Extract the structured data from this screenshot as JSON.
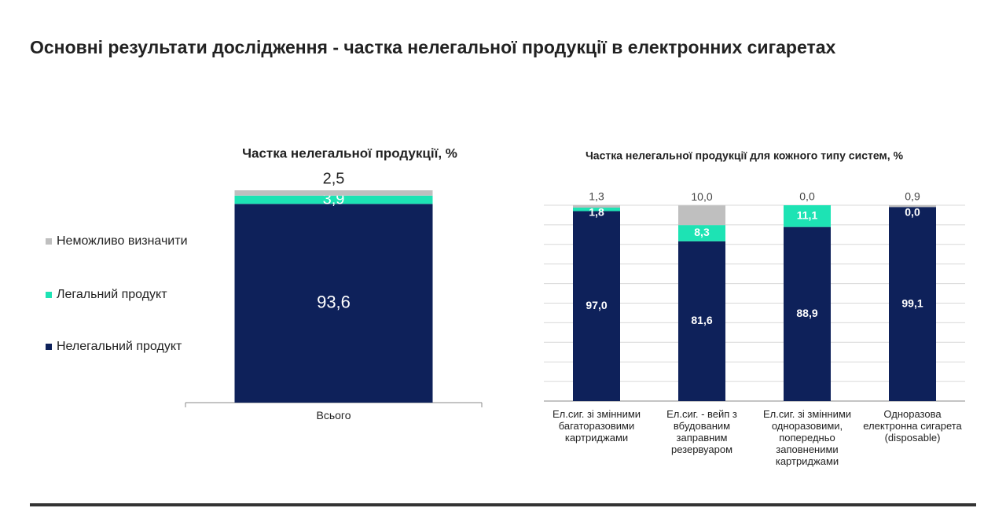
{
  "page_title": "Основні результати дослідження - частка нелегальної продукції в електронних сигаретах",
  "chart_data": [
    {
      "type": "bar",
      "stacked": true,
      "title": "Частка нелегальної продукції, %",
      "categories": [
        "Всього"
      ],
      "series": [
        {
          "name": "Нелегальний продукт",
          "color": "#0e215a",
          "values": [
            93.6
          ],
          "value_labels": [
            "93,6"
          ]
        },
        {
          "name": "Легальний продукт",
          "color": "#1de3b4",
          "values": [
            3.9
          ],
          "value_labels": [
            "3,9"
          ]
        },
        {
          "name": "Неможливо визначити",
          "color": "#bfbfbf",
          "values": [
            2.5
          ],
          "value_labels": [
            "2,5"
          ]
        }
      ],
      "ylim": [
        0,
        100
      ],
      "legend": "left"
    },
    {
      "type": "bar",
      "stacked": true,
      "title": "Частка нелегальної продукції для кожного типу систем, %",
      "categories": [
        "Ел.сиг. зі змінними багаторазовими картриджами",
        "Ел.сиг. - вейп з вбудованим заправним резервуаром",
        "Ел.сиг. зі змінними одноразовими, попередньо заповненими картриджами",
        "Одноразова електронна сигарета (disposable)"
      ],
      "series": [
        {
          "color": "#0e215a",
          "values": [
            97.0,
            81.6,
            88.9,
            99.1
          ],
          "value_labels": [
            "97,0",
            "81,6",
            "88,9",
            "99,1"
          ]
        },
        {
          "color": "#1de3b4",
          "values": [
            1.8,
            8.3,
            11.1,
            0.0
          ],
          "value_labels": [
            "1,8",
            "8,3",
            "11,1",
            "0,0"
          ]
        },
        {
          "color": "#bfbfbf",
          "values": [
            1.3,
            10.0,
            0.0,
            0.9
          ],
          "value_labels": [
            "1,3",
            "10,0",
            "0,0",
            "0,9"
          ]
        }
      ],
      "ylim": [
        0,
        100
      ],
      "yticks": [
        0,
        10,
        20,
        30,
        40,
        50,
        60,
        70,
        80,
        90,
        100
      ],
      "grid": true
    }
  ]
}
